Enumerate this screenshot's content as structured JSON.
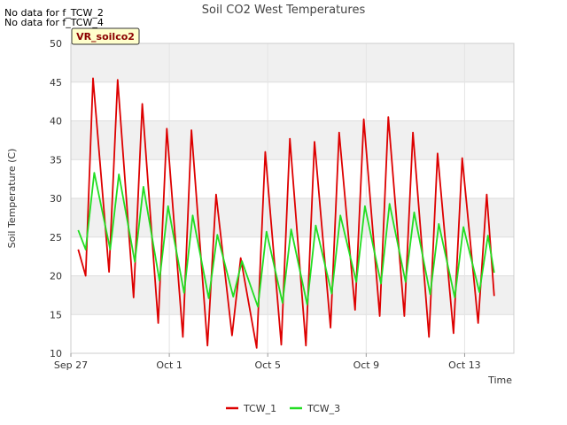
{
  "notices": [
    "No data for f_TCW_2",
    "No data for f_TCW_4"
  ],
  "badge": "VR_soilco2",
  "chart_data": {
    "type": "line",
    "title": "Soil CO2 West Temperatures",
    "xlabel": "Time",
    "ylabel": "Soil Temperature (C)",
    "xlim": [
      0,
      18
    ],
    "ylim": [
      10,
      50
    ],
    "yticks": [
      10,
      15,
      20,
      25,
      30,
      35,
      40,
      45,
      50
    ],
    "xticks": [
      {
        "day": 0,
        "label": "Sep 27"
      },
      {
        "day": 4,
        "label": "Oct 1"
      },
      {
        "day": 8,
        "label": "Oct 5"
      },
      {
        "day": 12,
        "label": "Oct 9"
      },
      {
        "day": 16,
        "label": "Oct 13"
      }
    ],
    "grid": true,
    "legend_position": "bottom-center",
    "series": [
      {
        "name": "TCW_1",
        "color": "#dd0000",
        "points": [
          [
            0.3,
            23.4
          ],
          [
            0.6,
            20.0
          ],
          [
            0.9,
            45.5
          ],
          [
            1.55,
            20.5
          ],
          [
            1.9,
            45.3
          ],
          [
            2.55,
            17.2
          ],
          [
            2.9,
            42.2
          ],
          [
            3.55,
            13.9
          ],
          [
            3.9,
            39.0
          ],
          [
            4.55,
            12.1
          ],
          [
            4.9,
            38.8
          ],
          [
            5.55,
            11.0
          ],
          [
            5.9,
            30.5
          ],
          [
            6.55,
            12.3
          ],
          [
            6.9,
            22.3
          ],
          [
            7.55,
            10.7
          ],
          [
            7.9,
            36.0
          ],
          [
            8.55,
            11.1
          ],
          [
            8.9,
            37.7
          ],
          [
            9.55,
            11.0
          ],
          [
            9.9,
            37.3
          ],
          [
            10.55,
            13.3
          ],
          [
            10.9,
            38.5
          ],
          [
            11.55,
            15.6
          ],
          [
            11.9,
            40.2
          ],
          [
            12.55,
            14.8
          ],
          [
            12.9,
            40.5
          ],
          [
            13.55,
            14.8
          ],
          [
            13.9,
            38.5
          ],
          [
            14.55,
            12.1
          ],
          [
            14.9,
            35.8
          ],
          [
            15.55,
            12.6
          ],
          [
            15.9,
            35.2
          ],
          [
            16.55,
            13.9
          ],
          [
            16.9,
            30.5
          ],
          [
            17.2,
            17.4
          ]
        ]
      },
      {
        "name": "TCW_3",
        "color": "#22dd22",
        "points": [
          [
            0.3,
            25.9
          ],
          [
            0.6,
            23.4
          ],
          [
            0.95,
            33.3
          ],
          [
            1.6,
            23.4
          ],
          [
            1.95,
            33.1
          ],
          [
            2.6,
            21.8
          ],
          [
            2.95,
            31.5
          ],
          [
            3.6,
            19.4
          ],
          [
            3.95,
            29.0
          ],
          [
            4.6,
            17.8
          ],
          [
            4.95,
            27.8
          ],
          [
            5.6,
            17.1
          ],
          [
            5.95,
            25.3
          ],
          [
            6.6,
            17.3
          ],
          [
            6.95,
            21.9
          ],
          [
            7.6,
            16.0
          ],
          [
            7.95,
            25.7
          ],
          [
            8.6,
            16.5
          ],
          [
            8.95,
            26.0
          ],
          [
            9.6,
            16.3
          ],
          [
            9.95,
            26.5
          ],
          [
            10.6,
            17.7
          ],
          [
            10.95,
            27.8
          ],
          [
            11.6,
            19.2
          ],
          [
            11.95,
            29.0
          ],
          [
            12.6,
            19.0
          ],
          [
            12.95,
            29.3
          ],
          [
            13.6,
            19.2
          ],
          [
            13.95,
            28.2
          ],
          [
            14.6,
            17.6
          ],
          [
            14.95,
            26.7
          ],
          [
            15.6,
            17.2
          ],
          [
            15.95,
            26.3
          ],
          [
            16.6,
            17.9
          ],
          [
            16.95,
            25.2
          ],
          [
            17.2,
            20.4
          ]
        ]
      }
    ]
  }
}
